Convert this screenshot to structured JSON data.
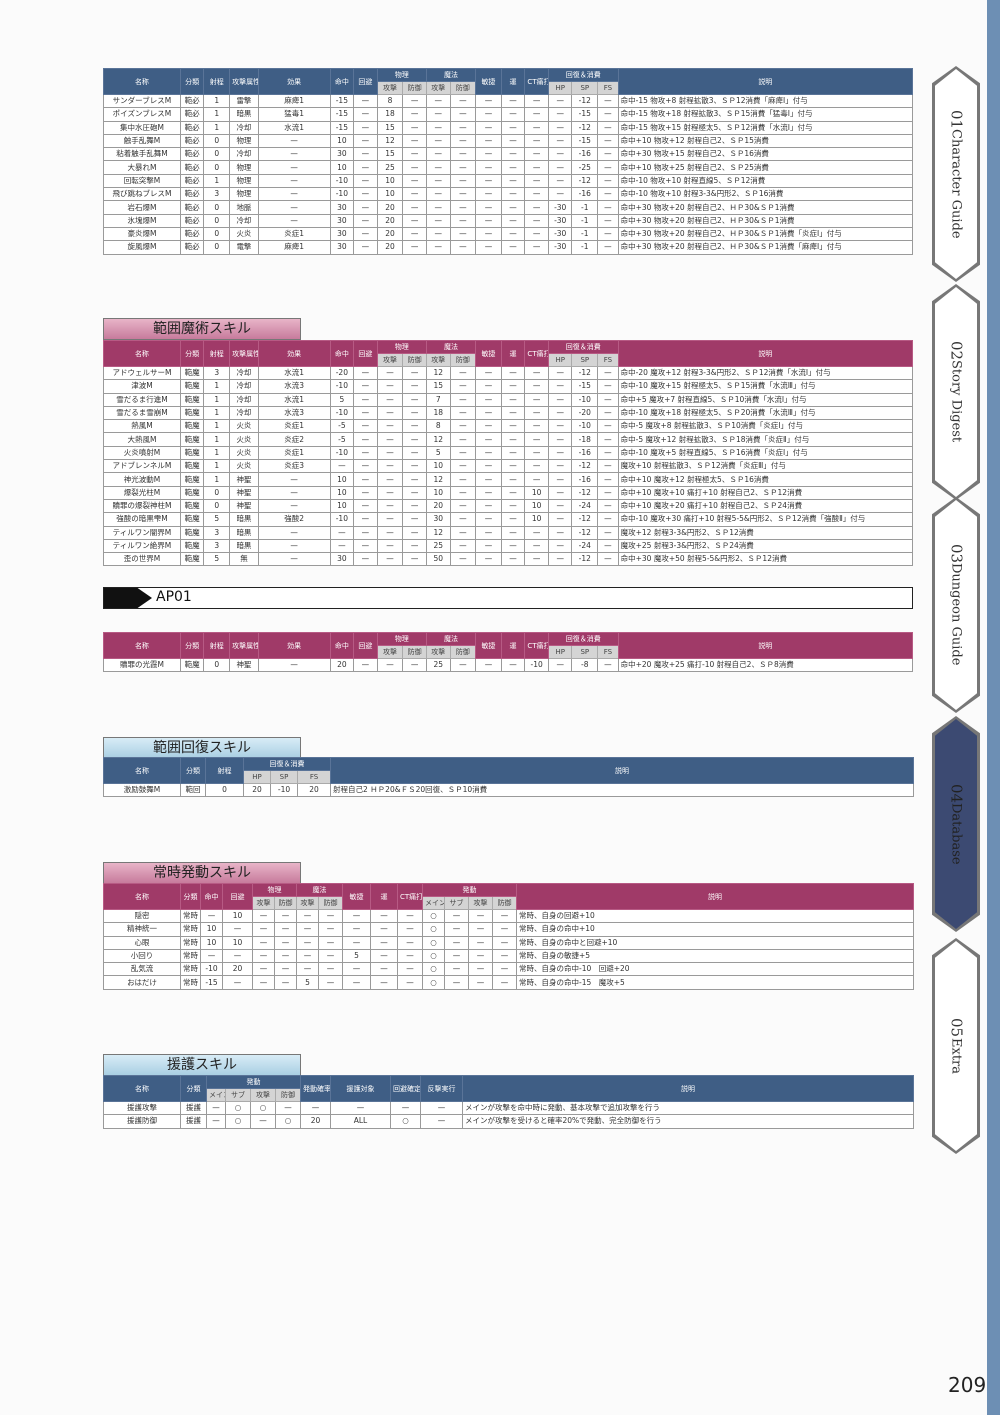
{
  "sidebar": {
    "tabs": [
      {
        "num": "01",
        "label": "Character Guide",
        "active": false
      },
      {
        "num": "02",
        "label": "Story Digest",
        "active": false
      },
      {
        "num": "03",
        "label": "Dungeon Guide",
        "active": false
      },
      {
        "num": "04",
        "label": "Database",
        "active": true
      },
      {
        "num": "05",
        "label": "Extra",
        "active": false
      }
    ]
  },
  "sections": {
    "magic": "範囲魔術スキル",
    "ap": "AP01",
    "heal": "範囲回復スキル",
    "passive": "常時発動スキル",
    "support": "援護スキル"
  },
  "page_number": "209",
  "colors": {
    "blue_header": "#3f5e85",
    "pink_header": "#a03a68",
    "sidebar_stripe": "#6d8fb4",
    "active_tab": "#3c4a72"
  },
  "tables": [
    {
      "columns": [
        {
          "label": "名称"
        },
        {
          "label": "分類"
        },
        {
          "label": "射程"
        },
        {
          "label": "攻撃属性"
        },
        {
          "label": "効果"
        },
        {
          "label": "命中"
        },
        {
          "label": "回避"
        },
        {
          "label": "物理",
          "sub": [
            "攻撃",
            "防御"
          ]
        },
        {
          "label": "魔法",
          "sub": [
            "攻撃",
            "防御"
          ]
        },
        {
          "label": "敏捷"
        },
        {
          "label": "運"
        },
        {
          "label": "CT痛打"
        },
        {
          "label": "回復＆消費",
          "sub": [
            "HP",
            "SP",
            "FS"
          ]
        },
        {
          "label": "説明"
        }
      ],
      "rows": [
        [
          "サンダーブレスM",
          "範必",
          "1",
          "雷撃",
          "麻痺1",
          "-15",
          "—",
          "8",
          "—",
          "—",
          "—",
          "—",
          "—",
          "—",
          "—",
          "-12",
          "—",
          "命中-15 物攻+8 射程拡散3、ＳＰ12消費「麻痺Ⅰ」付与"
        ],
        [
          "ポイズンブレスM",
          "範必",
          "1",
          "暗黒",
          "猛毒1",
          "-15",
          "—",
          "18",
          "—",
          "—",
          "—",
          "—",
          "—",
          "—",
          "—",
          "-15",
          "—",
          "命中-15 物攻+18 射程拡散3、ＳＰ15消費「猛毒Ⅰ」付与"
        ],
        [
          "集中水圧砲M",
          "範必",
          "1",
          "冷却",
          "水流1",
          "-15",
          "—",
          "15",
          "—",
          "—",
          "—",
          "—",
          "—",
          "—",
          "—",
          "-12",
          "—",
          "命中-15 物攻+15 射程極太5、ＳＰ12消費「水流Ⅰ」付与"
        ],
        [
          "触手乱舞M",
          "範必",
          "0",
          "物理",
          "—",
          "10",
          "—",
          "12",
          "—",
          "—",
          "—",
          "—",
          "—",
          "—",
          "—",
          "-15",
          "—",
          "命中+10 物攻+12 射程自己2、ＳＰ15消費"
        ],
        [
          "粘着触手乱舞M",
          "範必",
          "0",
          "冷却",
          "—",
          "30",
          "—",
          "15",
          "—",
          "—",
          "—",
          "—",
          "—",
          "—",
          "—",
          "-16",
          "—",
          "命中+30 物攻+15 射程自己2、ＳＰ16消費"
        ],
        [
          "大暴れM",
          "範必",
          "0",
          "物理",
          "—",
          "10",
          "—",
          "25",
          "—",
          "—",
          "—",
          "—",
          "—",
          "—",
          "—",
          "-25",
          "—",
          "命中+10 物攻+25 射程自己2、ＳＰ25消費"
        ],
        [
          "回転突撃M",
          "範必",
          "1",
          "物理",
          "—",
          "-10",
          "—",
          "10",
          "—",
          "—",
          "—",
          "—",
          "—",
          "—",
          "—",
          "-12",
          "—",
          "命中-10 物攻+10 射程直線5、ＳＰ12消費"
        ],
        [
          "飛び跳ねブレスM",
          "範必",
          "3",
          "物理",
          "—",
          "-10",
          "—",
          "10",
          "—",
          "—",
          "—",
          "—",
          "—",
          "—",
          "—",
          "-16",
          "—",
          "命中-10 物攻+10 射程3-3&円形2、ＳＰ16消費"
        ],
        [
          "岩石爆M",
          "範必",
          "0",
          "地脈",
          "—",
          "30",
          "—",
          "20",
          "—",
          "—",
          "—",
          "—",
          "—",
          "—",
          "-30",
          "-1",
          "—",
          "命中+30 物攻+20 射程自己2、ＨＰ30&ＳＰ1消費"
        ],
        [
          "氷塊爆M",
          "範必",
          "0",
          "冷却",
          "—",
          "30",
          "—",
          "20",
          "—",
          "—",
          "—",
          "—",
          "—",
          "—",
          "-30",
          "-1",
          "—",
          "命中+30 物攻+20 射程自己2、ＨＰ30&ＳＰ1消費"
        ],
        [
          "豪炎爆M",
          "範必",
          "0",
          "火炎",
          "炎症1",
          "30",
          "—",
          "20",
          "—",
          "—",
          "—",
          "—",
          "—",
          "—",
          "-30",
          "-1",
          "—",
          "命中+30 物攻+20 射程自己2、ＨＰ30&ＳＰ1消費「炎症Ⅰ」付与"
        ],
        [
          "旋風爆M",
          "範必",
          "0",
          "電撃",
          "麻痺1",
          "30",
          "—",
          "20",
          "—",
          "—",
          "—",
          "—",
          "—",
          "—",
          "-30",
          "-1",
          "—",
          "命中+30 物攻+20 射程自己2、ＨＰ30&ＳＰ1消費「麻痺Ⅰ」付与"
        ]
      ]
    },
    {
      "columns": [
        {
          "label": "名称"
        },
        {
          "label": "分類"
        },
        {
          "label": "射程"
        },
        {
          "label": "攻撃属性"
        },
        {
          "label": "効果"
        },
        {
          "label": "命中"
        },
        {
          "label": "回避"
        },
        {
          "label": "物理",
          "sub": [
            "攻撃",
            "防御"
          ]
        },
        {
          "label": "魔法",
          "sub": [
            "攻撃",
            "防御"
          ]
        },
        {
          "label": "敏捷"
        },
        {
          "label": "運"
        },
        {
          "label": "CT痛打"
        },
        {
          "label": "回復＆消費",
          "sub": [
            "HP",
            "SP",
            "FS"
          ]
        },
        {
          "label": "説明"
        }
      ],
      "rows": [
        [
          "アドウェルサーM",
          "範魔",
          "3",
          "冷却",
          "水流1",
          "-20",
          "—",
          "—",
          "—",
          "12",
          "—",
          "—",
          "—",
          "—",
          "—",
          "-12",
          "—",
          "命中-20 魔攻+12 射程3-3&円形2、ＳＰ12消費「水流Ⅰ」付与"
        ],
        [
          "津波M",
          "範魔",
          "1",
          "冷却",
          "水流3",
          "-10",
          "—",
          "—",
          "—",
          "15",
          "—",
          "—",
          "—",
          "—",
          "—",
          "-15",
          "—",
          "命中-10 魔攻+15 射程極太5、ＳＰ15消費「水流Ⅲ」付与"
        ],
        [
          "雪だるま行進M",
          "範魔",
          "1",
          "冷却",
          "水流1",
          "5",
          "—",
          "—",
          "—",
          "7",
          "—",
          "—",
          "—",
          "—",
          "—",
          "-10",
          "—",
          "命中+5 魔攻+7 射程直線5、ＳＰ10消費「水流Ⅰ」付与"
        ],
        [
          "雪だるま雪崩M",
          "範魔",
          "1",
          "冷却",
          "水流3",
          "-10",
          "—",
          "—",
          "—",
          "18",
          "—",
          "—",
          "—",
          "—",
          "—",
          "-20",
          "—",
          "命中-10 魔攻+18 射程極太5、ＳＰ20消費「水流Ⅲ」付与"
        ],
        [
          "熱風M",
          "範魔",
          "1",
          "火炎",
          "炎症1",
          "-5",
          "—",
          "—",
          "—",
          "8",
          "—",
          "—",
          "—",
          "—",
          "—",
          "-10",
          "—",
          "命中-5 魔攻+8 射程拡散3、ＳＰ10消費「炎症Ⅰ」付与"
        ],
        [
          "大熱風M",
          "範魔",
          "1",
          "火炎",
          "炎症2",
          "-5",
          "—",
          "—",
          "—",
          "12",
          "—",
          "—",
          "—",
          "—",
          "—",
          "-18",
          "—",
          "命中-5 魔攻+12 射程拡散3、ＳＰ18消費「炎症Ⅱ」付与"
        ],
        [
          "火炎噴射M",
          "範魔",
          "1",
          "火炎",
          "炎症1",
          "-10",
          "—",
          "—",
          "—",
          "5",
          "—",
          "—",
          "—",
          "—",
          "—",
          "-16",
          "—",
          "命中-10 魔攻+5 射程直線5、ＳＰ16消費「炎症Ⅰ」付与"
        ],
        [
          "アドブレンネルM",
          "範魔",
          "1",
          "火炎",
          "炎症3",
          "—",
          "—",
          "—",
          "—",
          "10",
          "—",
          "—",
          "—",
          "—",
          "—",
          "-12",
          "—",
          "魔攻+10 射程拡散3、ＳＰ12消費「炎症Ⅲ」付与"
        ],
        [
          "神光波動M",
          "範魔",
          "1",
          "神聖",
          "—",
          "10",
          "—",
          "—",
          "—",
          "12",
          "—",
          "—",
          "—",
          "—",
          "—",
          "-16",
          "—",
          "命中+10 魔攻+12 射程極太5、ＳＰ16消費"
        ],
        [
          "爆裂光柱M",
          "範魔",
          "0",
          "神聖",
          "—",
          "10",
          "—",
          "—",
          "—",
          "10",
          "—",
          "—",
          "—",
          "10",
          "—",
          "-12",
          "—",
          "命中+10 魔攻+10 痛打+10 射程自己2、ＳＰ12消費"
        ],
        [
          "贖罪の爆裂神柱M",
          "範魔",
          "0",
          "神聖",
          "—",
          "10",
          "—",
          "—",
          "—",
          "20",
          "—",
          "—",
          "—",
          "10",
          "—",
          "-24",
          "—",
          "命中+10 魔攻+20 痛打+10 射程自己2、ＳＰ24消費"
        ],
        [
          "強酸の暗黒雫M",
          "範魔",
          "5",
          "暗黒",
          "強酸2",
          "-10",
          "—",
          "—",
          "—",
          "30",
          "—",
          "—",
          "—",
          "10",
          "—",
          "-12",
          "—",
          "命中-10 魔攻+30 痛打+10 射程5-5&円形2、ＳＰ12消費「強酸Ⅱ」付与"
        ],
        [
          "ティルワン闇界M",
          "範魔",
          "3",
          "暗黒",
          "—",
          "—",
          "—",
          "—",
          "—",
          "12",
          "—",
          "—",
          "—",
          "—",
          "—",
          "-12",
          "—",
          "魔攻+12 射程3-3&円形2、ＳＰ12消費"
        ],
        [
          "ティルワン絶界M",
          "範魔",
          "3",
          "暗黒",
          "—",
          "—",
          "—",
          "—",
          "—",
          "25",
          "—",
          "—",
          "—",
          "—",
          "—",
          "-24",
          "—",
          "魔攻+25 射程3-3&円形2、ＳＰ24消費"
        ],
        [
          "歪の世界M",
          "範魔",
          "5",
          "無",
          "—",
          "30",
          "—",
          "—",
          "—",
          "50",
          "—",
          "—",
          "—",
          "—",
          "—",
          "-12",
          "—",
          "命中+30 魔攻+50 射程5-5&円形2、ＳＰ12消費"
        ]
      ]
    },
    {
      "columns": [
        {
          "label": "名称"
        },
        {
          "label": "分類"
        },
        {
          "label": "射程"
        },
        {
          "label": "攻撃属性"
        },
        {
          "label": "効果"
        },
        {
          "label": "命中"
        },
        {
          "label": "回避"
        },
        {
          "label": "物理",
          "sub": [
            "攻撃",
            "防御"
          ]
        },
        {
          "label": "魔法",
          "sub": [
            "攻撃",
            "防御"
          ]
        },
        {
          "label": "敏捷"
        },
        {
          "label": "運"
        },
        {
          "label": "CT痛打"
        },
        {
          "label": "回復＆消費",
          "sub": [
            "HP",
            "SP",
            "FS"
          ]
        },
        {
          "label": "説明"
        }
      ],
      "rows": [
        [
          "贖罪の光霞M",
          "範魔",
          "0",
          "神聖",
          "—",
          "20",
          "—",
          "—",
          "—",
          "25",
          "—",
          "—",
          "—",
          "-10",
          "—",
          "-8",
          "—",
          "命中+20 魔攻+25 痛打-10 射程自己2、ＳＰ8消費"
        ]
      ]
    },
    {
      "columns": [
        {
          "label": "名称"
        },
        {
          "label": "分類"
        },
        {
          "label": "射程"
        },
        {
          "label": "回復＆消費",
          "sub": [
            "HP",
            "SP",
            "FS"
          ]
        },
        {
          "label": "説明"
        }
      ],
      "rows": [
        [
          "激励鼓舞M",
          "範回",
          "0",
          "20",
          "-10",
          "20",
          "射程自己2 ＨＰ20&ＦＳ20回復、ＳＰ10消費"
        ]
      ]
    },
    {
      "columns": [
        {
          "label": "名称"
        },
        {
          "label": "分類"
        },
        {
          "label": "命中"
        },
        {
          "label": "回避"
        },
        {
          "label": "物理",
          "sub": [
            "攻撃",
            "防御"
          ]
        },
        {
          "label": "魔法",
          "sub": [
            "攻撃",
            "防御"
          ]
        },
        {
          "label": "敏捷"
        },
        {
          "label": "運"
        },
        {
          "label": "CT痛打"
        },
        {
          "label": "発動",
          "sub": [
            "メイン",
            "サブ",
            "攻撃",
            "防御"
          ]
        },
        {
          "label": "説明"
        }
      ],
      "rows": [
        [
          "隠密",
          "常時",
          "—",
          "10",
          "—",
          "—",
          "—",
          "—",
          "—",
          "—",
          "—",
          "○",
          "—",
          "—",
          "—",
          "常時、自身の回避+10"
        ],
        [
          "精神統一",
          "常時",
          "10",
          "—",
          "—",
          "—",
          "—",
          "—",
          "—",
          "—",
          "—",
          "○",
          "—",
          "—",
          "—",
          "常時、自身の命中+10"
        ],
        [
          "心眼",
          "常時",
          "10",
          "10",
          "—",
          "—",
          "—",
          "—",
          "—",
          "—",
          "—",
          "○",
          "—",
          "—",
          "—",
          "常時、自身の命中と回避+10"
        ],
        [
          "小回り",
          "常時",
          "—",
          "—",
          "—",
          "—",
          "—",
          "—",
          "5",
          "—",
          "—",
          "○",
          "—",
          "—",
          "—",
          "常時、自身の敏捷+5"
        ],
        [
          "乱気流",
          "常時",
          "-10",
          "20",
          "—",
          "—",
          "—",
          "—",
          "—",
          "—",
          "—",
          "○",
          "—",
          "—",
          "—",
          "常時、自身の命中-10　回避+20"
        ],
        [
          "おはだけ",
          "常時",
          "-15",
          "—",
          "—",
          "—",
          "5",
          "—",
          "—",
          "—",
          "—",
          "○",
          "—",
          "—",
          "—",
          "常時、自身の命中-15　魔攻+5"
        ]
      ]
    },
    {
      "columns": [
        {
          "label": "名称"
        },
        {
          "label": "分類"
        },
        {
          "label": "発動",
          "sub": [
            "メイン",
            "サブ",
            "攻撃",
            "防御"
          ]
        },
        {
          "label": "発動確率"
        },
        {
          "label": "援護対象"
        },
        {
          "label": "回避確定"
        },
        {
          "label": "反撃実行"
        },
        {
          "label": "説明"
        }
      ],
      "rows": [
        [
          "援護攻撃",
          "援護",
          "—",
          "○",
          "○",
          "—",
          "—",
          "—",
          "—",
          "—",
          "メインが攻撃を命中時に発動、基本攻撃で追加攻撃を行う"
        ],
        [
          "援護防御",
          "援護",
          "—",
          "○",
          "—",
          "○",
          "20",
          "ALL",
          "○",
          "—",
          "メインが攻撃を受けると確率20%で発動、完全防御を行う"
        ]
      ]
    }
  ]
}
